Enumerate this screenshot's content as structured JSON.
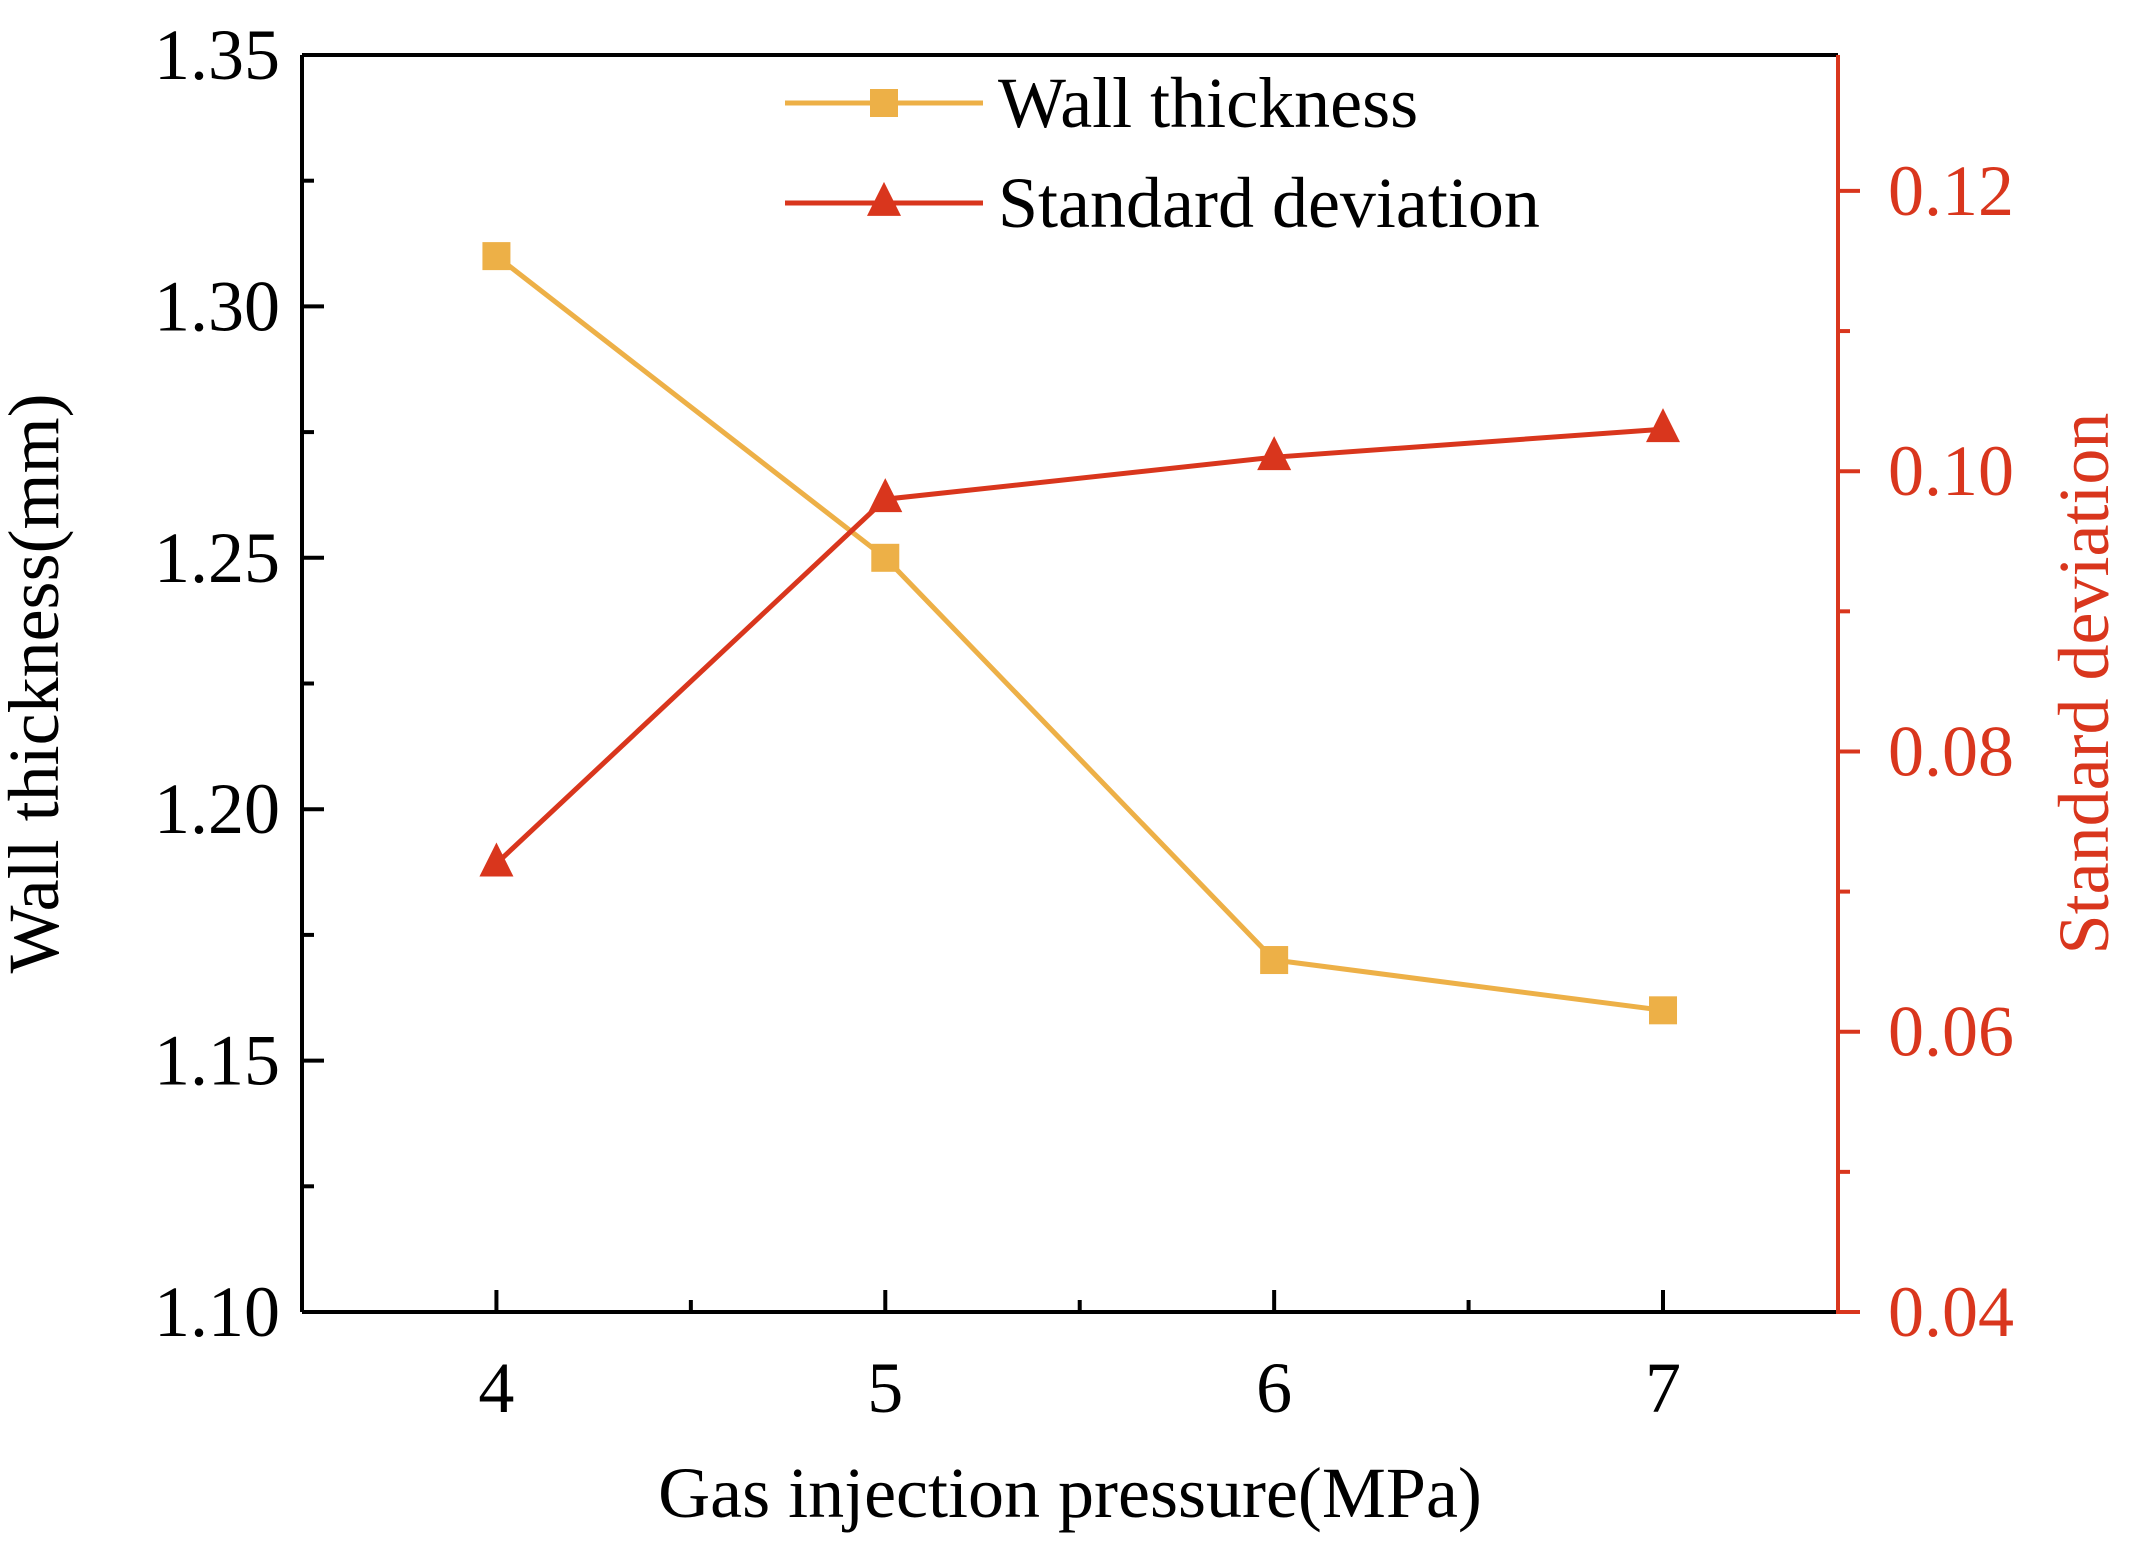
{
  "chart_data": {
    "type": "line",
    "x": [
      4,
      5,
      6,
      7
    ],
    "x_ticks": [
      "4",
      "5",
      "6",
      "7"
    ],
    "xlabel": "Gas injection pressure(MPa)",
    "xlim": [
      3.5,
      7.45
    ],
    "ylabel_left": "Wall thickness(mm)",
    "ylim_left": [
      1.1,
      1.35
    ],
    "yticks_left": [
      "1.10",
      "1.15",
      "1.20",
      "1.25",
      "1.30",
      "1.35"
    ],
    "ylabel_right": "Standard deviation",
    "ylim_right": [
      0.04,
      0.1297
    ],
    "yticks_right": [
      "0.04",
      "0.06",
      "0.08",
      "0.10",
      "0.12"
    ],
    "grid": false,
    "legend_position": "top-center",
    "series": [
      {
        "name": "Wall thickness",
        "axis": "left",
        "marker": "square",
        "color": "#EDB047",
        "values": [
          1.31,
          1.25,
          1.17,
          1.16
        ]
      },
      {
        "name": "Standard deviation",
        "axis": "right",
        "marker": "triangle",
        "color": "#D9361D",
        "values": [
          0.072,
          0.098,
          0.101,
          0.103
        ]
      }
    ],
    "colors": {
      "axis_left": "#000000",
      "axis_right": "#D9361D"
    }
  }
}
